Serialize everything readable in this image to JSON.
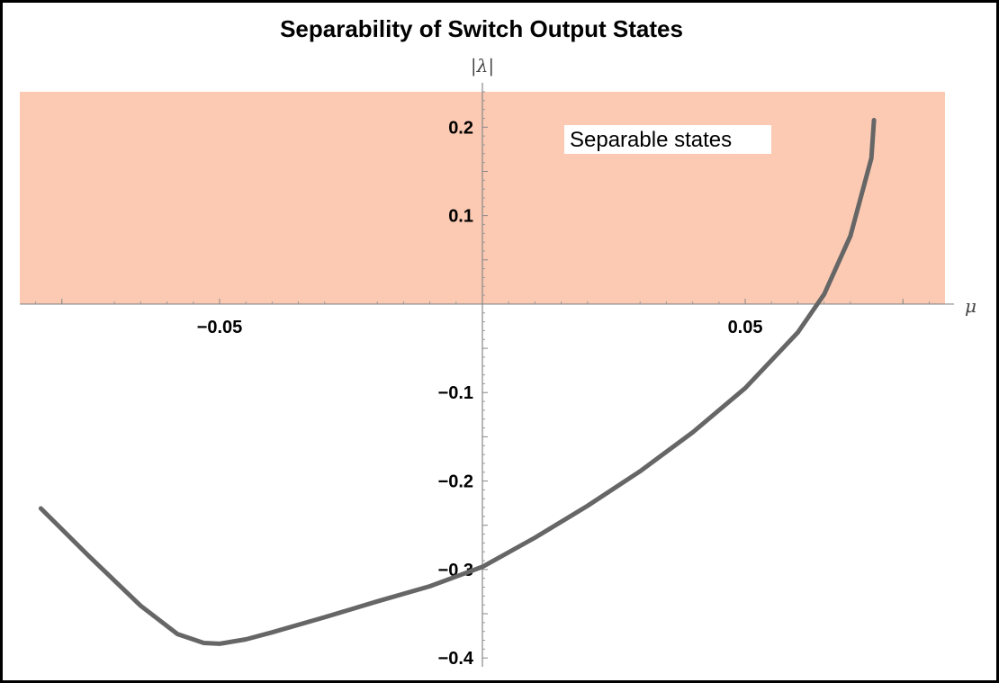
{
  "chart_data": {
    "type": "line",
    "title": "Separability of Switch Output States",
    "xlabel": "μ",
    "ylabel": "|λ|",
    "xlim": [
      -0.088,
      0.088
    ],
    "ylim": [
      -0.41,
      0.24
    ],
    "x_ticks": [
      -0.05,
      0.05
    ],
    "x_tick_labels": [
      "−0.05",
      "0.05"
    ],
    "y_ticks": [
      -0.4,
      -0.3,
      -0.2,
      -0.1,
      0.1,
      0.2
    ],
    "y_tick_labels": [
      "−0.4",
      "−0.3",
      "−0.2",
      "−0.1",
      "0.1",
      "0.2"
    ],
    "grid": false,
    "region": {
      "label": "Separable states",
      "y_from": 0,
      "y_to": 0.24,
      "color": "#fccab3"
    },
    "series": [
      {
        "color": "#666666",
        "x": [
          -0.084,
          -0.075,
          -0.065,
          -0.058,
          -0.053,
          -0.05,
          -0.045,
          -0.04,
          -0.03,
          -0.02,
          -0.01,
          0.0,
          0.01,
          0.02,
          0.03,
          0.04,
          0.05,
          0.06,
          0.065,
          0.07,
          0.074,
          0.0745
        ],
        "y": [
          -0.231,
          -0.284,
          -0.341,
          -0.373,
          -0.383,
          -0.384,
          -0.379,
          -0.371,
          -0.354,
          -0.336,
          -0.319,
          -0.297,
          -0.264,
          -0.228,
          -0.189,
          -0.145,
          -0.095,
          -0.032,
          0.011,
          0.077,
          0.165,
          0.208
        ]
      }
    ]
  }
}
